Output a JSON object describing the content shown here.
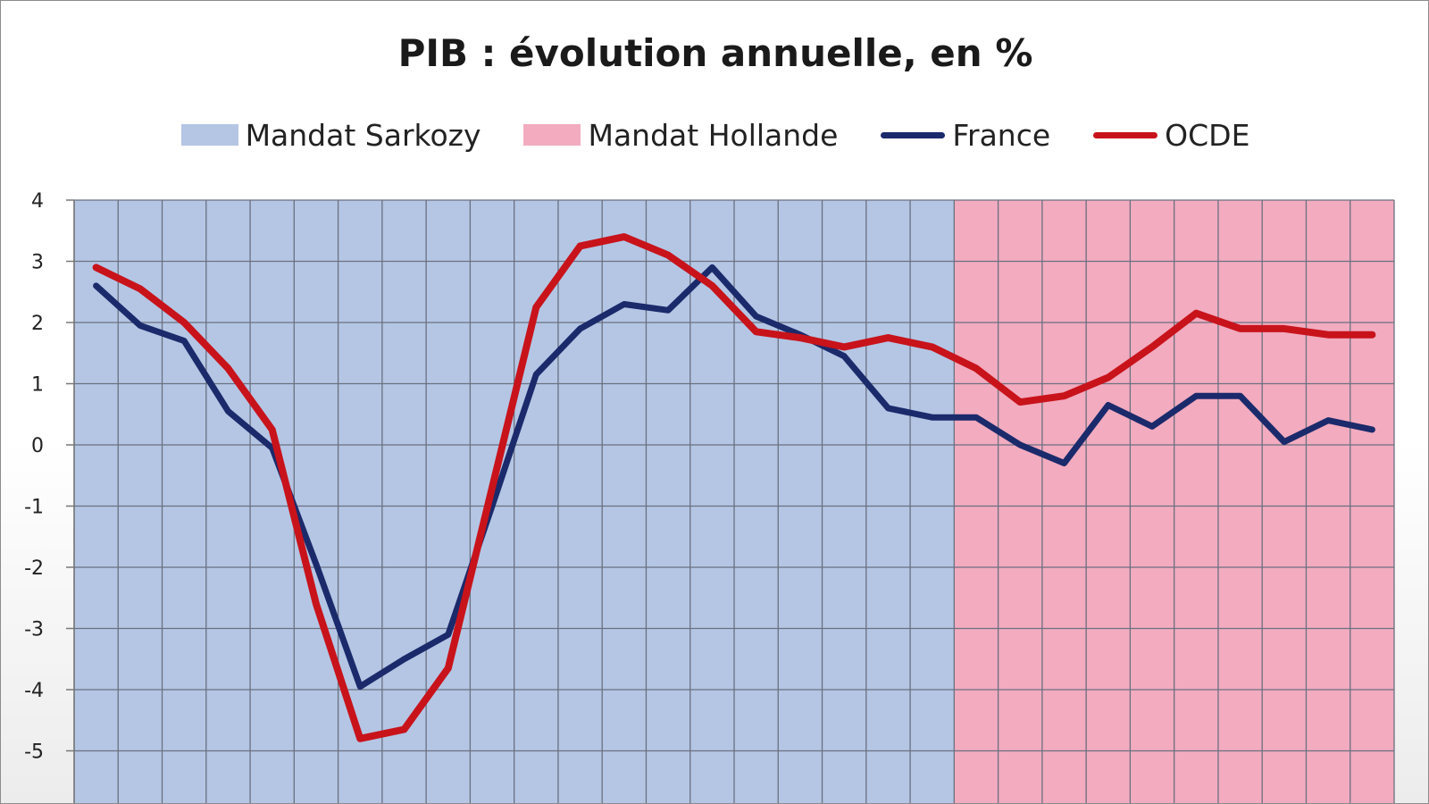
{
  "chart_data": {
    "type": "line",
    "title": "PIB : évolution annuelle, en %",
    "xlabel": "",
    "ylabel": "",
    "ylim": [
      -5.8,
      4
    ],
    "yticks": [
      "4",
      "3",
      "2",
      "1",
      "0",
      "-1",
      "-2",
      "-3",
      "-4",
      "-5"
    ],
    "grid": true,
    "legend_position": "top",
    "bands": [
      {
        "name": "Mandat Sarkozy",
        "color": "#b4c6e4",
        "start_index": 0,
        "end_index": 20
      },
      {
        "name": "Mandat Hollande",
        "color": "#f2abbf",
        "start_index": 20,
        "end_index": 30
      }
    ],
    "series": [
      {
        "name": "France",
        "color": "#1b2a6b",
        "values": [
          2.6,
          1.95,
          1.7,
          0.55,
          -0.05,
          -1.95,
          -3.95,
          -3.5,
          -3.1,
          -1.0,
          1.15,
          1.9,
          2.3,
          2.2,
          2.9,
          2.1,
          1.8,
          1.45,
          0.6,
          0.45,
          0.45,
          0.0,
          -0.3,
          0.65,
          0.3,
          0.8,
          0.8,
          0.05,
          0.4,
          0.25
        ]
      },
      {
        "name": "OCDE",
        "color": "#c8131b",
        "values": [
          2.9,
          2.55,
          2.0,
          1.25,
          0.25,
          -2.6,
          -4.8,
          -4.65,
          -3.65,
          -0.7,
          2.25,
          3.25,
          3.4,
          3.1,
          2.6,
          1.85,
          1.75,
          1.6,
          1.75,
          1.6,
          1.25,
          0.7,
          0.8,
          1.1,
          1.6,
          2.15,
          1.9,
          1.9,
          1.8,
          1.8
        ]
      }
    ]
  }
}
